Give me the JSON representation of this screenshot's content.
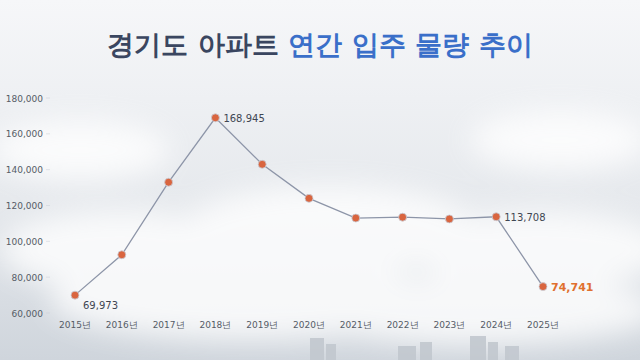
{
  "chart_data": {
    "type": "line",
    "title": "경기도 아파트 연간 입주 물량 추이",
    "categories": [
      "2015년",
      "2016년",
      "2017년",
      "2018년",
      "2019년",
      "2020년",
      "2021년",
      "2022년",
      "2023년",
      "2024년",
      "2025년"
    ],
    "values": [
      69973,
      92500,
      133000,
      168945,
      143000,
      124000,
      113000,
      113500,
      112500,
      113708,
      74741
    ],
    "value_labels": [
      "69,973",
      null,
      null,
      "168,945",
      null,
      null,
      null,
      null,
      null,
      "113,708",
      "74,741"
    ],
    "data_labels": true,
    "color": "#8d95a8",
    "marker": "circle",
    "ylim": [
      60000,
      180000
    ],
    "yticks": [
      {
        "value": 60000,
        "label": "60,000"
      },
      {
        "value": 80000,
        "label": "80,000"
      },
      {
        "value": 100000,
        "label": "100,000"
      },
      {
        "value": 120000,
        "label": "120,000"
      },
      {
        "value": 140000,
        "label": "140,000"
      },
      {
        "value": 160000,
        "label": "160,000"
      },
      {
        "value": 180000,
        "label": "180,000"
      }
    ],
    "grid": false
  }
}
